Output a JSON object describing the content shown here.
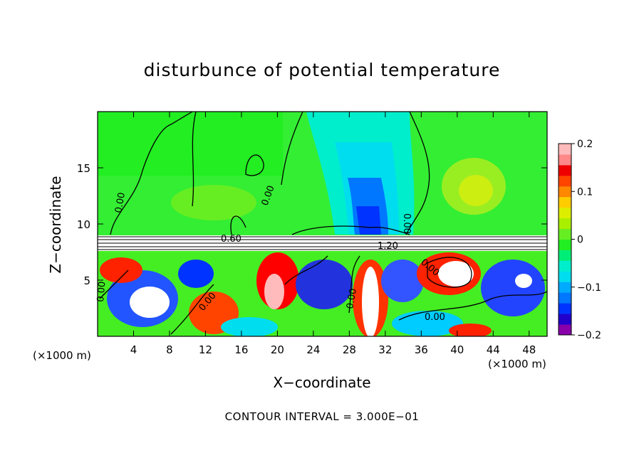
{
  "chart_data": {
    "type": "heatmap",
    "title": "disturbunce of potential temperature",
    "xlabel": "X−coordinate",
    "ylabel": "Z−coordinate",
    "x_unit": "(×1000 m)",
    "footer": "CONTOUR INTERVAL = 3.000E−01",
    "x_ticks": [
      4,
      8,
      12,
      16,
      20,
      24,
      28,
      32,
      36,
      40,
      44,
      48
    ],
    "y_ticks": [
      5,
      10,
      15
    ],
    "xlim": [
      0,
      50
    ],
    "ylim": [
      0,
      20
    ],
    "colorbar": {
      "ticks": [
        "0.2",
        "0.1",
        "0",
        "−0.1",
        "−0.2"
      ],
      "range": [
        -0.2,
        0.2
      ],
      "colors": [
        "#8800aa",
        "#2200cc",
        "#0033ff",
        "#0077ff",
        "#00aaff",
        "#00ddee",
        "#00eecc",
        "#00ee77",
        "#22ee22",
        "#66ee22",
        "#aaee00",
        "#ddee00",
        "#ffcc00",
        "#ff8800",
        "#ff4400",
        "#ee0000",
        "#ff8888",
        "#ffbbbb"
      ]
    },
    "contour_labels": [
      "0.00",
      "0.60",
      "1.20",
      "0.00",
      "0.00",
      "0.00",
      "0.00",
      "0.00",
      "0.00",
      "0.00"
    ]
  }
}
